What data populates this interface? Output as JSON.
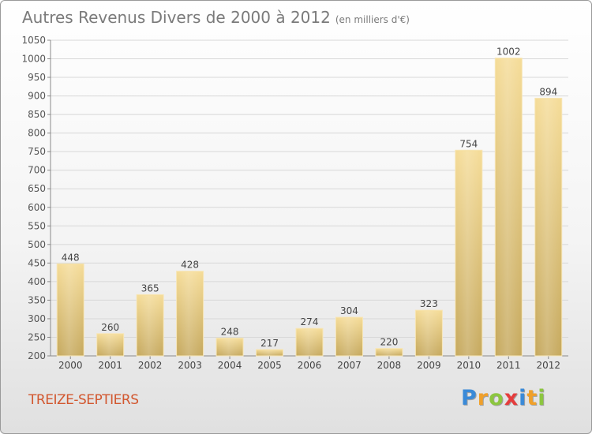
{
  "chart_data": {
    "type": "bar",
    "title": "Autres Revenus Divers de 2000 à 2012",
    "subtitle": "(en milliers d'€)",
    "categories": [
      "2000",
      "2001",
      "2002",
      "2003",
      "2004",
      "2005",
      "2006",
      "2007",
      "2008",
      "2009",
      "2010",
      "2011",
      "2012"
    ],
    "values": [
      448,
      260,
      365,
      428,
      248,
      217,
      274,
      304,
      220,
      323,
      754,
      1002,
      894
    ],
    "ylim": [
      200,
      1050
    ],
    "yticks": [
      200,
      250,
      300,
      350,
      400,
      450,
      500,
      550,
      600,
      650,
      700,
      750,
      800,
      850,
      900,
      950,
      1000,
      1050
    ],
    "grid": true,
    "bar_color": "#e8c878",
    "xlabel": "",
    "ylabel": ""
  },
  "commune": "TREIZE-SEPTIERS",
  "brand": {
    "letters": [
      "P",
      "r",
      "o",
      "x",
      "i",
      "t",
      "i"
    ],
    "colors": [
      "#3a8ad8",
      "#f0a02a",
      "#8cc63f",
      "#e53c3c",
      "#3a8ad8",
      "#f0a02a",
      "#8cc63f"
    ]
  },
  "colors": {
    "title": "#7a7a7a",
    "commune": "#d2572f",
    "grid": "#d8d8d8"
  }
}
